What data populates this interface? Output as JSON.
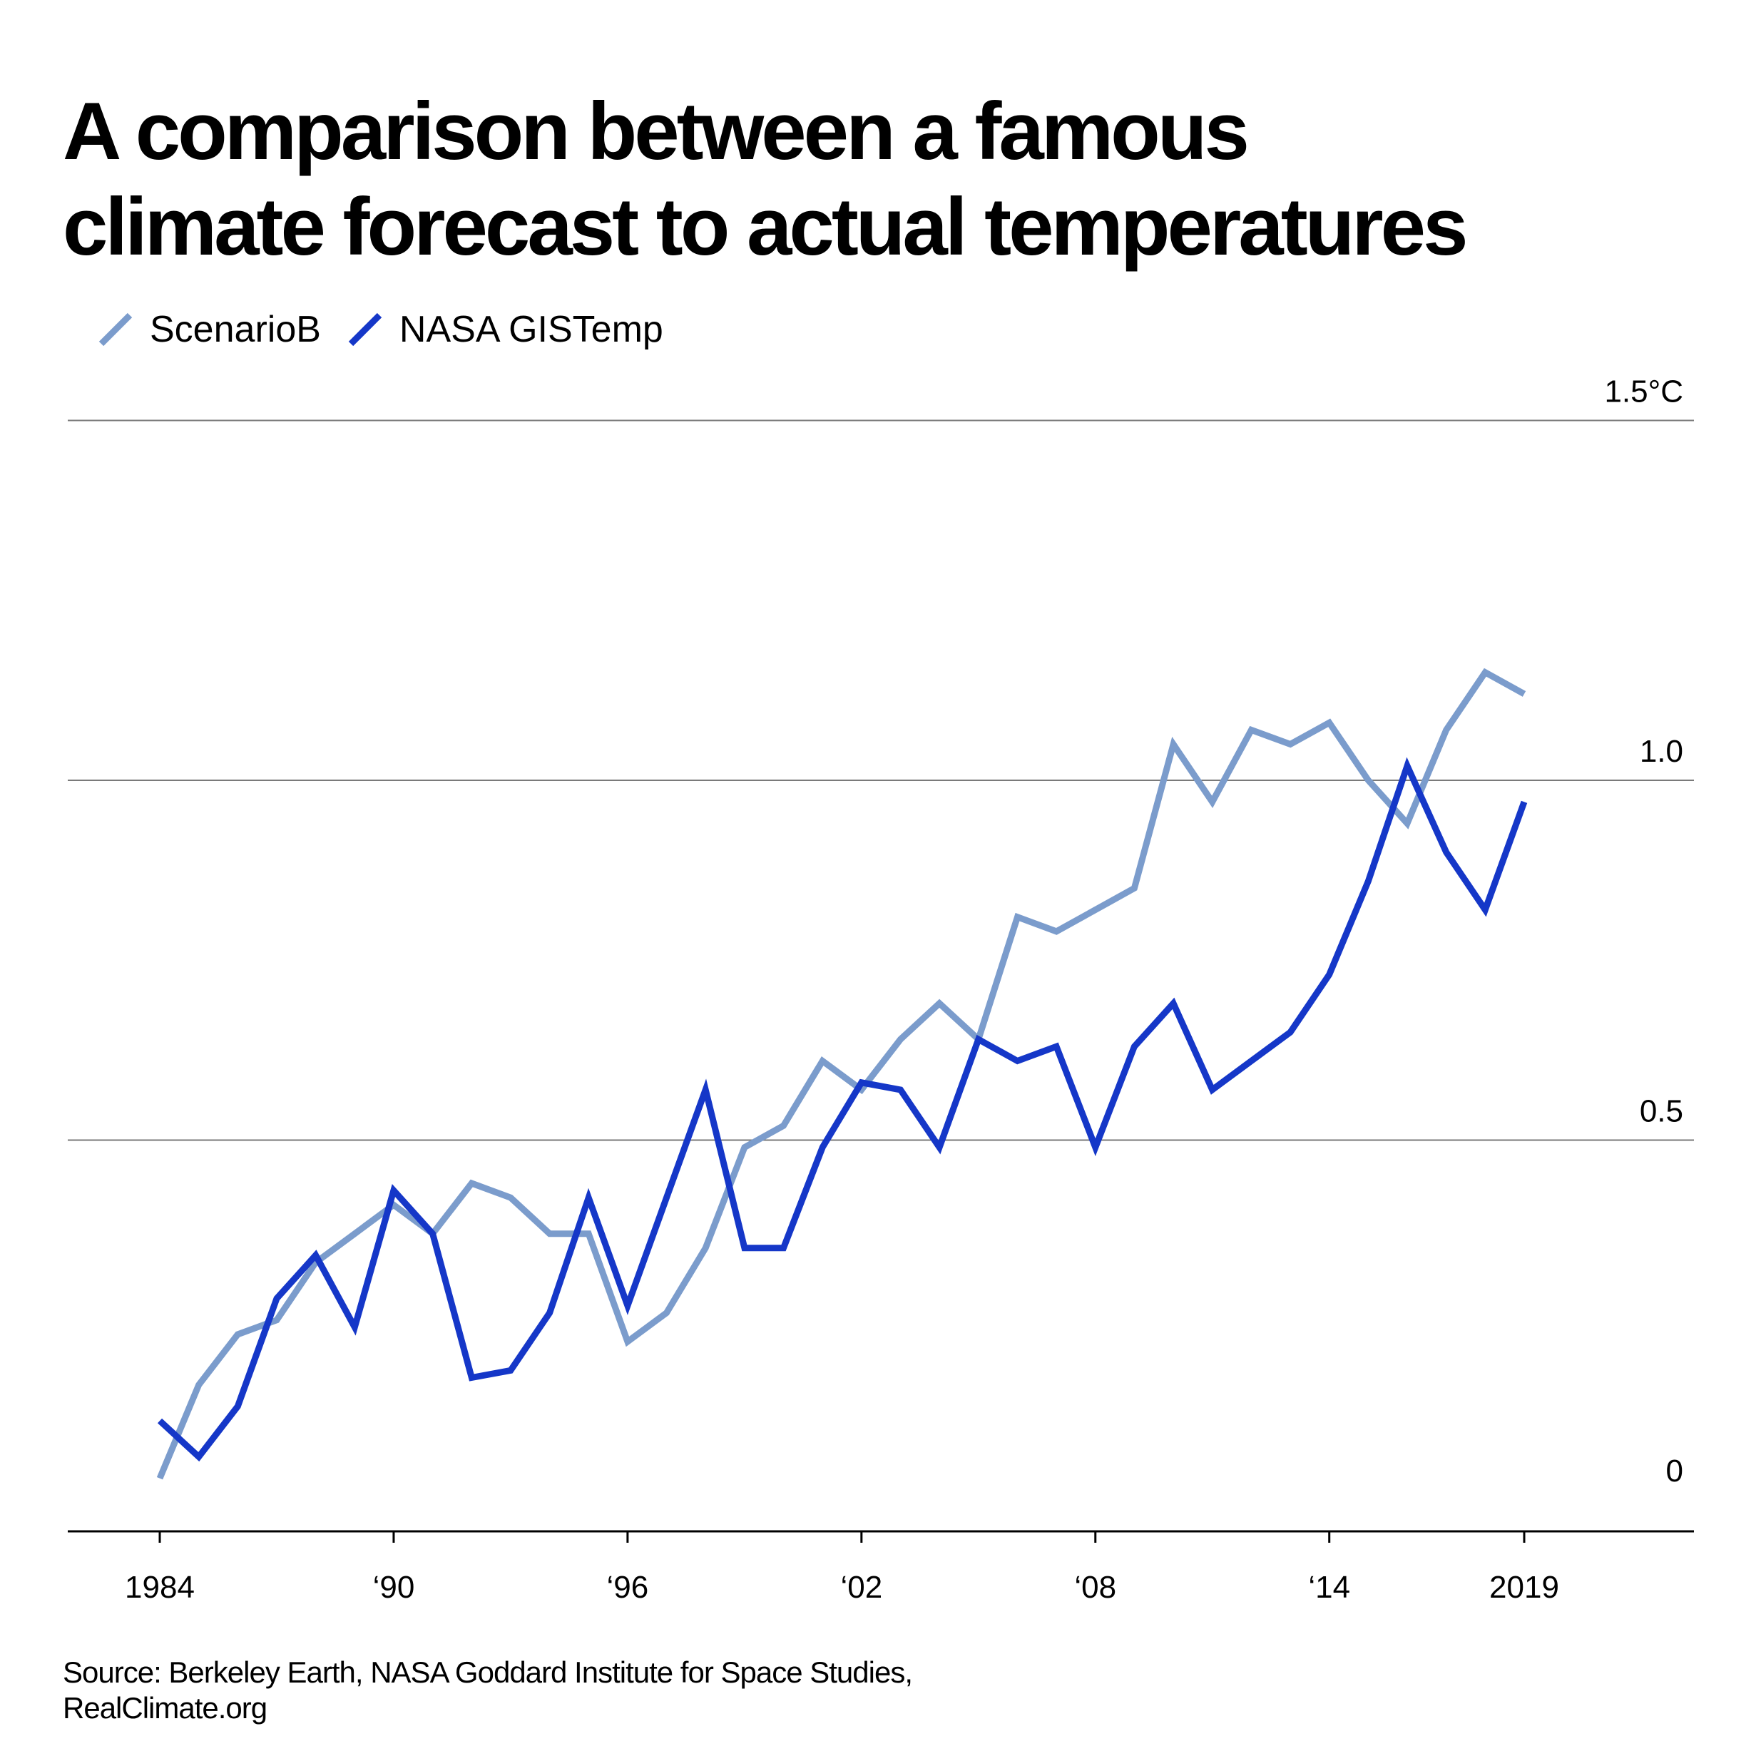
{
  "title_line1": "A comparison between a famous",
  "title_line2": "climate forecast to actual temperatures",
  "source_line1": "Source: Berkeley Earth, NASA Goddard Institute for Space Studies,",
  "source_line2": "RealClimate.org",
  "colors": {
    "scenario": "#7b9ccc",
    "nasa": "#1537c8",
    "grid": "#7a7a7a",
    "axis": "#000000"
  },
  "chart_data": {
    "type": "line",
    "x": [
      1984,
      1985,
      1986,
      1987,
      1988,
      1989,
      1990,
      1991,
      1992,
      1993,
      1994,
      1995,
      1996,
      1997,
      1998,
      1999,
      2000,
      2001,
      2002,
      2003,
      2004,
      2005,
      2006,
      2007,
      2008,
      2009,
      2010,
      2011,
      2012,
      2013,
      2014,
      2015,
      2016,
      2017,
      2018,
      2019
    ],
    "series": [
      {
        "name": "ScenarioB",
        "color": "#7b9ccc",
        "values": [
          0.03,
          0.16,
          0.23,
          0.25,
          0.33,
          0.37,
          0.41,
          0.37,
          0.44,
          0.42,
          0.37,
          0.37,
          0.22,
          0.26,
          0.35,
          0.49,
          0.52,
          0.61,
          0.57,
          0.64,
          0.69,
          0.64,
          0.81,
          0.79,
          0.82,
          0.85,
          1.05,
          0.97,
          1.07,
          1.05,
          1.08,
          1.0,
          0.94,
          1.07,
          1.15,
          1.12
        ]
      },
      {
        "name": "NASA GISTemp",
        "color": "#1537c8",
        "values": [
          0.11,
          0.06,
          0.13,
          0.28,
          0.34,
          0.24,
          0.43,
          0.37,
          0.17,
          0.18,
          0.26,
          0.42,
          0.27,
          0.42,
          0.57,
          0.35,
          0.35,
          0.49,
          0.58,
          0.57,
          0.49,
          0.64,
          0.61,
          0.63,
          0.49,
          0.63,
          0.69,
          0.57,
          0.61,
          0.65,
          0.73,
          0.86,
          1.02,
          0.9,
          0.82,
          0.97
        ]
      }
    ],
    "xticks": [
      {
        "value": 1984,
        "label": "1984"
      },
      {
        "value": 1990,
        "label": "‘90"
      },
      {
        "value": 1996,
        "label": "‘96"
      },
      {
        "value": 2002,
        "label": "‘02"
      },
      {
        "value": 2008,
        "label": "‘08"
      },
      {
        "value": 2014,
        "label": "‘14"
      },
      {
        "value": 2019,
        "label": "2019"
      }
    ],
    "yticks": [
      {
        "value": 0,
        "label": "0"
      },
      {
        "value": 0.5,
        "label": "0.5"
      },
      {
        "value": 1.0,
        "label": "1.0"
      },
      {
        "value": 1.5,
        "label": "1.5°C"
      }
    ],
    "ylim": [
      0,
      1.5
    ],
    "grid": true,
    "legend_position": "top-left"
  }
}
